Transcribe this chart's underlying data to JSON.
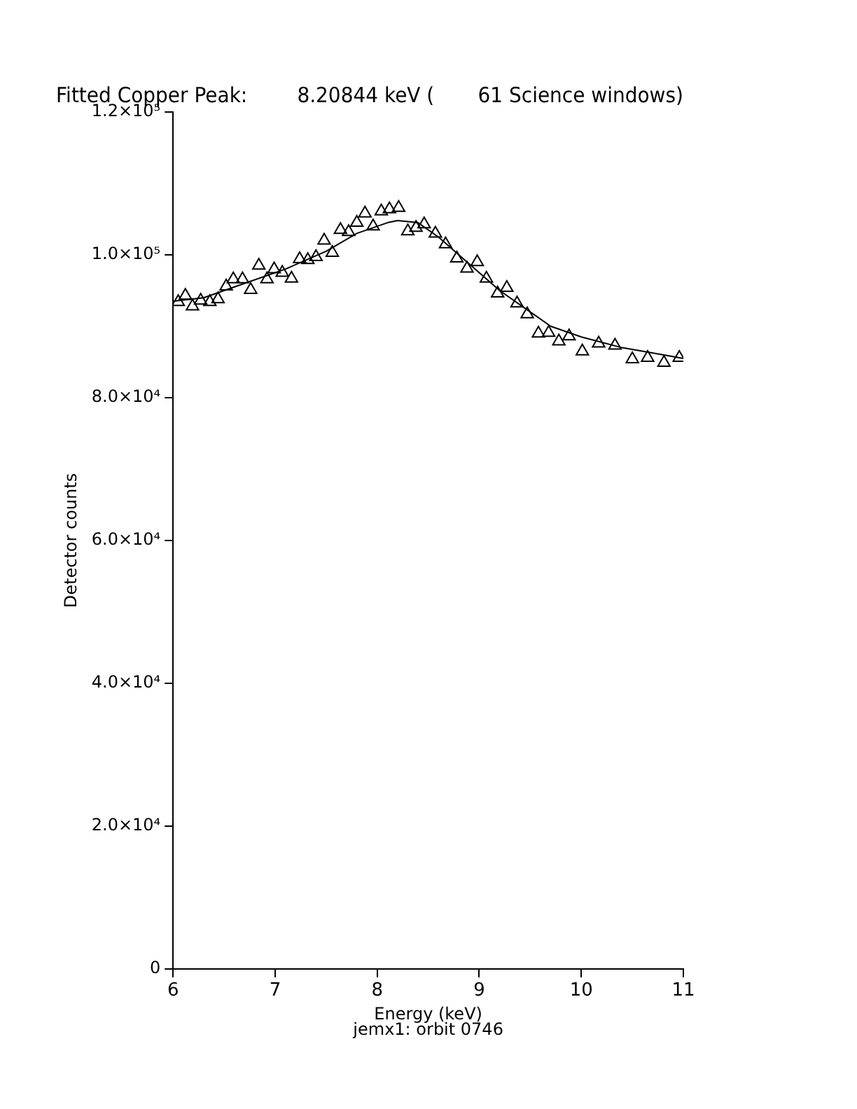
{
  "chart_data": {
    "type": "scatter",
    "title": "Fitted Copper Peak:        8.20844 keV (       61 Science windows)",
    "xlabel": "Energy (keV)",
    "ylabel": "Detector counts",
    "annotations": [
      "jemx1: orbit 0746"
    ],
    "xlim": [
      6,
      11
    ],
    "xticks": [
      6,
      7,
      8,
      9,
      10,
      11
    ],
    "ylim": [
      0,
      120000
    ],
    "yticks": [
      {
        "value": 0,
        "label": "0"
      },
      {
        "value": 20000,
        "label": "2.0×10⁴"
      },
      {
        "value": 40000,
        "label": "4.0×10⁴"
      },
      {
        "value": 60000,
        "label": "6.0×10⁴"
      },
      {
        "value": 80000,
        "label": "8.0×10⁴"
      },
      {
        "value": 100000,
        "label": "1.0×10⁵"
      },
      {
        "value": 120000,
        "label": "1.2×10⁵"
      }
    ],
    "grid": false,
    "legend": false,
    "series": [
      {
        "type": "scatter",
        "marker": "triangle",
        "color": "#000000",
        "x": [
          6.05,
          6.12,
          6.19,
          6.27,
          6.36,
          6.44,
          6.52,
          6.59,
          6.68,
          6.76,
          6.84,
          6.92,
          6.99,
          7.07,
          7.16,
          7.24,
          7.32,
          7.4,
          7.48,
          7.56,
          7.64,
          7.72,
          7.8,
          7.88,
          7.96,
          8.04,
          8.12,
          8.21,
          8.3,
          8.38,
          8.46,
          8.57,
          8.67,
          8.78,
          8.88,
          8.98,
          9.07,
          9.18,
          9.27,
          9.37,
          9.47,
          9.58,
          9.68,
          9.78,
          9.88,
          10.01,
          10.17,
          10.33,
          10.5,
          10.65,
          10.81,
          10.96
        ],
        "values": [
          93400,
          94300,
          92800,
          93600,
          93400,
          93800,
          95600,
          96600,
          96600,
          95100,
          98500,
          96600,
          98000,
          97500,
          96700,
          99400,
          99300,
          99700,
          102000,
          100300,
          103500,
          103200,
          104500,
          105800,
          104000,
          106100,
          106400,
          106600,
          103300,
          103800,
          104300,
          103000,
          101500,
          99500,
          98100,
          99000,
          96700,
          94600,
          95400,
          93200,
          91700,
          89000,
          89100,
          87900,
          88600,
          86500,
          87600,
          87300,
          85400,
          85600,
          84900,
          85600
        ]
      },
      {
        "type": "line",
        "marker": "none",
        "line_style": "solid",
        "color": "#000000",
        "x": [
          6,
          6.3,
          6.7,
          7.1,
          7.5,
          7.8,
          8.1,
          8.2,
          8.4,
          8.6,
          8.8,
          9,
          9.2,
          9.5,
          9.7,
          10,
          10.4,
          10.8,
          11
        ],
        "values": [
          93500,
          94000,
          96000,
          98000,
          100500,
          103000,
          104500,
          104800,
          104500,
          102500,
          100000,
          97500,
          95000,
          92000,
          90000,
          88500,
          87000,
          86000,
          85500
        ]
      }
    ]
  }
}
